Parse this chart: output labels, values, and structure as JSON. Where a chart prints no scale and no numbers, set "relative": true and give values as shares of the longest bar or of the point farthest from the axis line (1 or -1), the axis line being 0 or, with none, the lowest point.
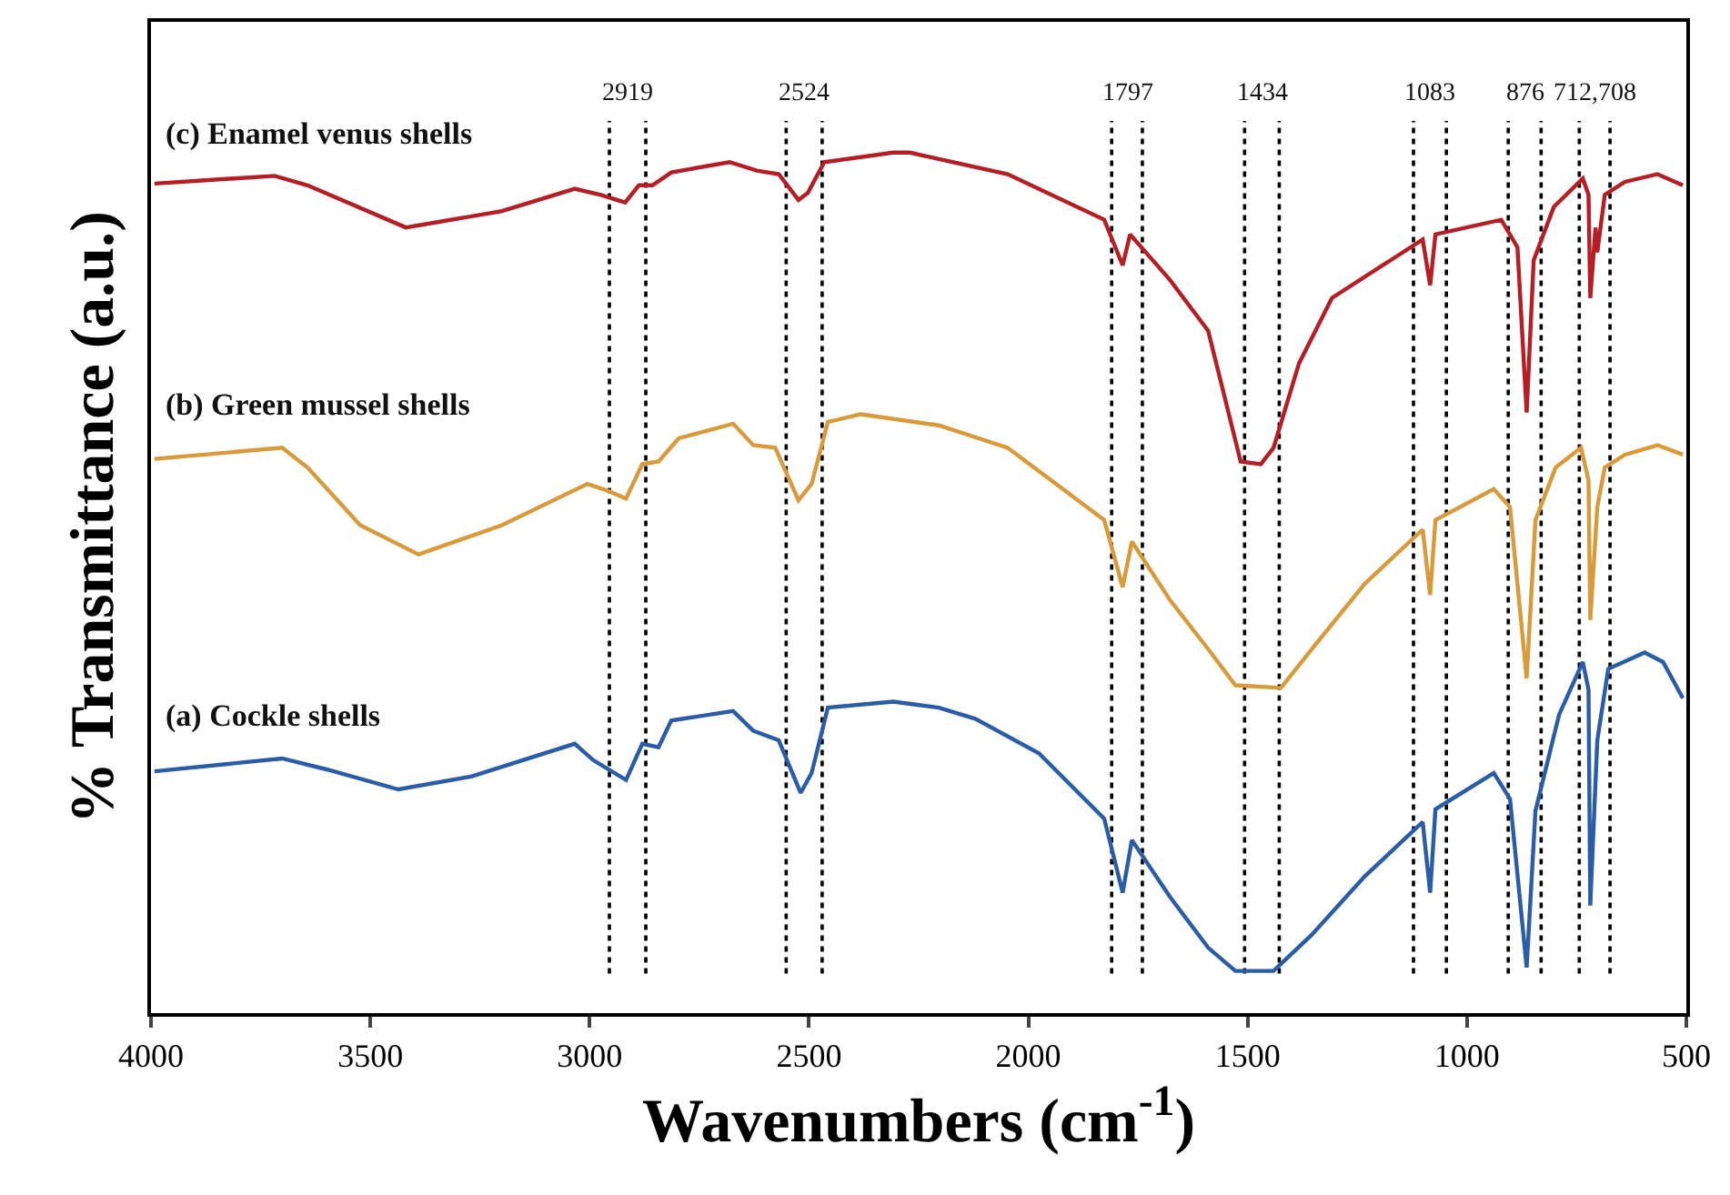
{
  "chart_data": {
    "type": "line",
    "relative": true,
    "xlabel": "Wavenumbers (cm$^{-1}$)",
    "ylabel": "% Transmittance (a.u.)",
    "xlim": [
      4000,
      500
    ],
    "xticks": [
      4000,
      3500,
      3000,
      2500,
      2000,
      1500,
      1000,
      500
    ],
    "grid": false,
    "legend": false,
    "line_style": "solid",
    "marker": "none",
    "series": [
      {
        "name": "(c) Enamel venus shells",
        "color": "#b41e24",
        "x": [
          3992,
          3718,
          3643,
          3419,
          3200,
          3034,
          2976,
          2919,
          2888,
          2857,
          2814,
          2681,
          2619,
          2569,
          2524,
          2503,
          2465,
          2308,
          2270,
          2047,
          1827,
          1785,
          1768,
          1677,
          1590,
          1516,
          1470,
          1441,
          1383,
          1308,
          1101,
          1084,
          1072,
          922,
          885,
          864,
          848,
          802,
          736,
          723,
          719,
          707,
          703,
          686,
          640,
          566,
          508
        ],
        "values": [
          0.964,
          0.973,
          0.962,
          0.913,
          0.932,
          0.958,
          0.951,
          0.942,
          0.962,
          0.962,
          0.977,
          0.989,
          0.979,
          0.975,
          0.945,
          0.953,
          0.989,
          1.0,
          1.0,
          0.975,
          0.922,
          0.869,
          0.905,
          0.852,
          0.793,
          0.641,
          0.638,
          0.657,
          0.755,
          0.831,
          0.899,
          0.846,
          0.905,
          0.922,
          0.89,
          0.698,
          0.875,
          0.937,
          0.97,
          0.951,
          0.831,
          0.913,
          0.884,
          0.951,
          0.966,
          0.975,
          0.962
        ]
      },
      {
        "name": "(b) Green mussel shells",
        "color": "#d89a3a",
        "x": [
          3992,
          3701,
          3643,
          3523,
          3390,
          3200,
          3005,
          2959,
          2917,
          2880,
          2843,
          2797,
          2673,
          2627,
          2577,
          2524,
          2494,
          2457,
          2382,
          2204,
          2047,
          1827,
          1785,
          1764,
          1677,
          1590,
          1528,
          1424,
          1354,
          1233,
          1101,
          1084,
          1072,
          939,
          902,
          864,
          844,
          798,
          740,
          723,
          719,
          703,
          686,
          640,
          566,
          508
        ],
        "values": [
          0.644,
          0.657,
          0.634,
          0.567,
          0.533,
          0.567,
          0.615,
          0.607,
          0.598,
          0.638,
          0.641,
          0.668,
          0.685,
          0.66,
          0.657,
          0.596,
          0.615,
          0.687,
          0.696,
          0.683,
          0.657,
          0.573,
          0.495,
          0.548,
          0.48,
          0.423,
          0.381,
          0.378,
          0.423,
          0.499,
          0.562,
          0.486,
          0.573,
          0.609,
          0.588,
          0.389,
          0.573,
          0.634,
          0.657,
          0.619,
          0.457,
          0.588,
          0.634,
          0.649,
          0.66,
          0.649
        ]
      },
      {
        "name": "(a) Cockle shells",
        "color": "#2a5ca8",
        "x": [
          3992,
          3701,
          3598,
          3436,
          3270,
          3034,
          2992,
          2917,
          2880,
          2843,
          2814,
          2673,
          2627,
          2569,
          2519,
          2494,
          2457,
          2308,
          2204,
          2121,
          1976,
          1827,
          1785,
          1764,
          1677,
          1590,
          1528,
          1441,
          1354,
          1233,
          1101,
          1084,
          1072,
          939,
          902,
          864,
          844,
          790,
          736,
          723,
          719,
          703,
          678,
          595,
          553,
          508
        ],
        "values": [
          0.281,
          0.296,
          0.283,
          0.26,
          0.275,
          0.313,
          0.294,
          0.271,
          0.313,
          0.309,
          0.34,
          0.351,
          0.328,
          0.317,
          0.256,
          0.279,
          0.355,
          0.362,
          0.355,
          0.342,
          0.302,
          0.226,
          0.14,
          0.201,
          0.135,
          0.076,
          0.049,
          0.049,
          0.091,
          0.159,
          0.222,
          0.14,
          0.237,
          0.279,
          0.249,
          0.053,
          0.235,
          0.347,
          0.408,
          0.376,
          0.125,
          0.317,
          0.4,
          0.419,
          0.408,
          0.366
        ]
      }
    ],
    "annotations": [
      "2919",
      "2524",
      "1797",
      "1434",
      "1083",
      "876",
      "712,708"
    ],
    "ref_lines": [
      {
        "axis": "x",
        "value": 2955,
        "line_style": "dotted"
      },
      {
        "axis": "x",
        "value": 2872,
        "line_style": "dotted"
      },
      {
        "axis": "x",
        "value": 2552,
        "line_style": "dotted"
      },
      {
        "axis": "x",
        "value": 2470,
        "line_style": "dotted"
      },
      {
        "axis": "x",
        "value": 1810,
        "line_style": "dotted"
      },
      {
        "axis": "x",
        "value": 1740,
        "line_style": "dotted"
      },
      {
        "axis": "x",
        "value": 1507,
        "line_style": "dotted"
      },
      {
        "axis": "x",
        "value": 1428,
        "line_style": "dotted"
      },
      {
        "axis": "x",
        "value": 1122,
        "line_style": "dotted"
      },
      {
        "axis": "x",
        "value": 1047,
        "line_style": "dotted"
      },
      {
        "axis": "x",
        "value": 906,
        "line_style": "dotted"
      },
      {
        "axis": "x",
        "value": 831,
        "line_style": "dotted"
      },
      {
        "axis": "x",
        "value": 744,
        "line_style": "dotted"
      },
      {
        "axis": "x",
        "value": 674,
        "line_style": "dotted"
      }
    ]
  }
}
